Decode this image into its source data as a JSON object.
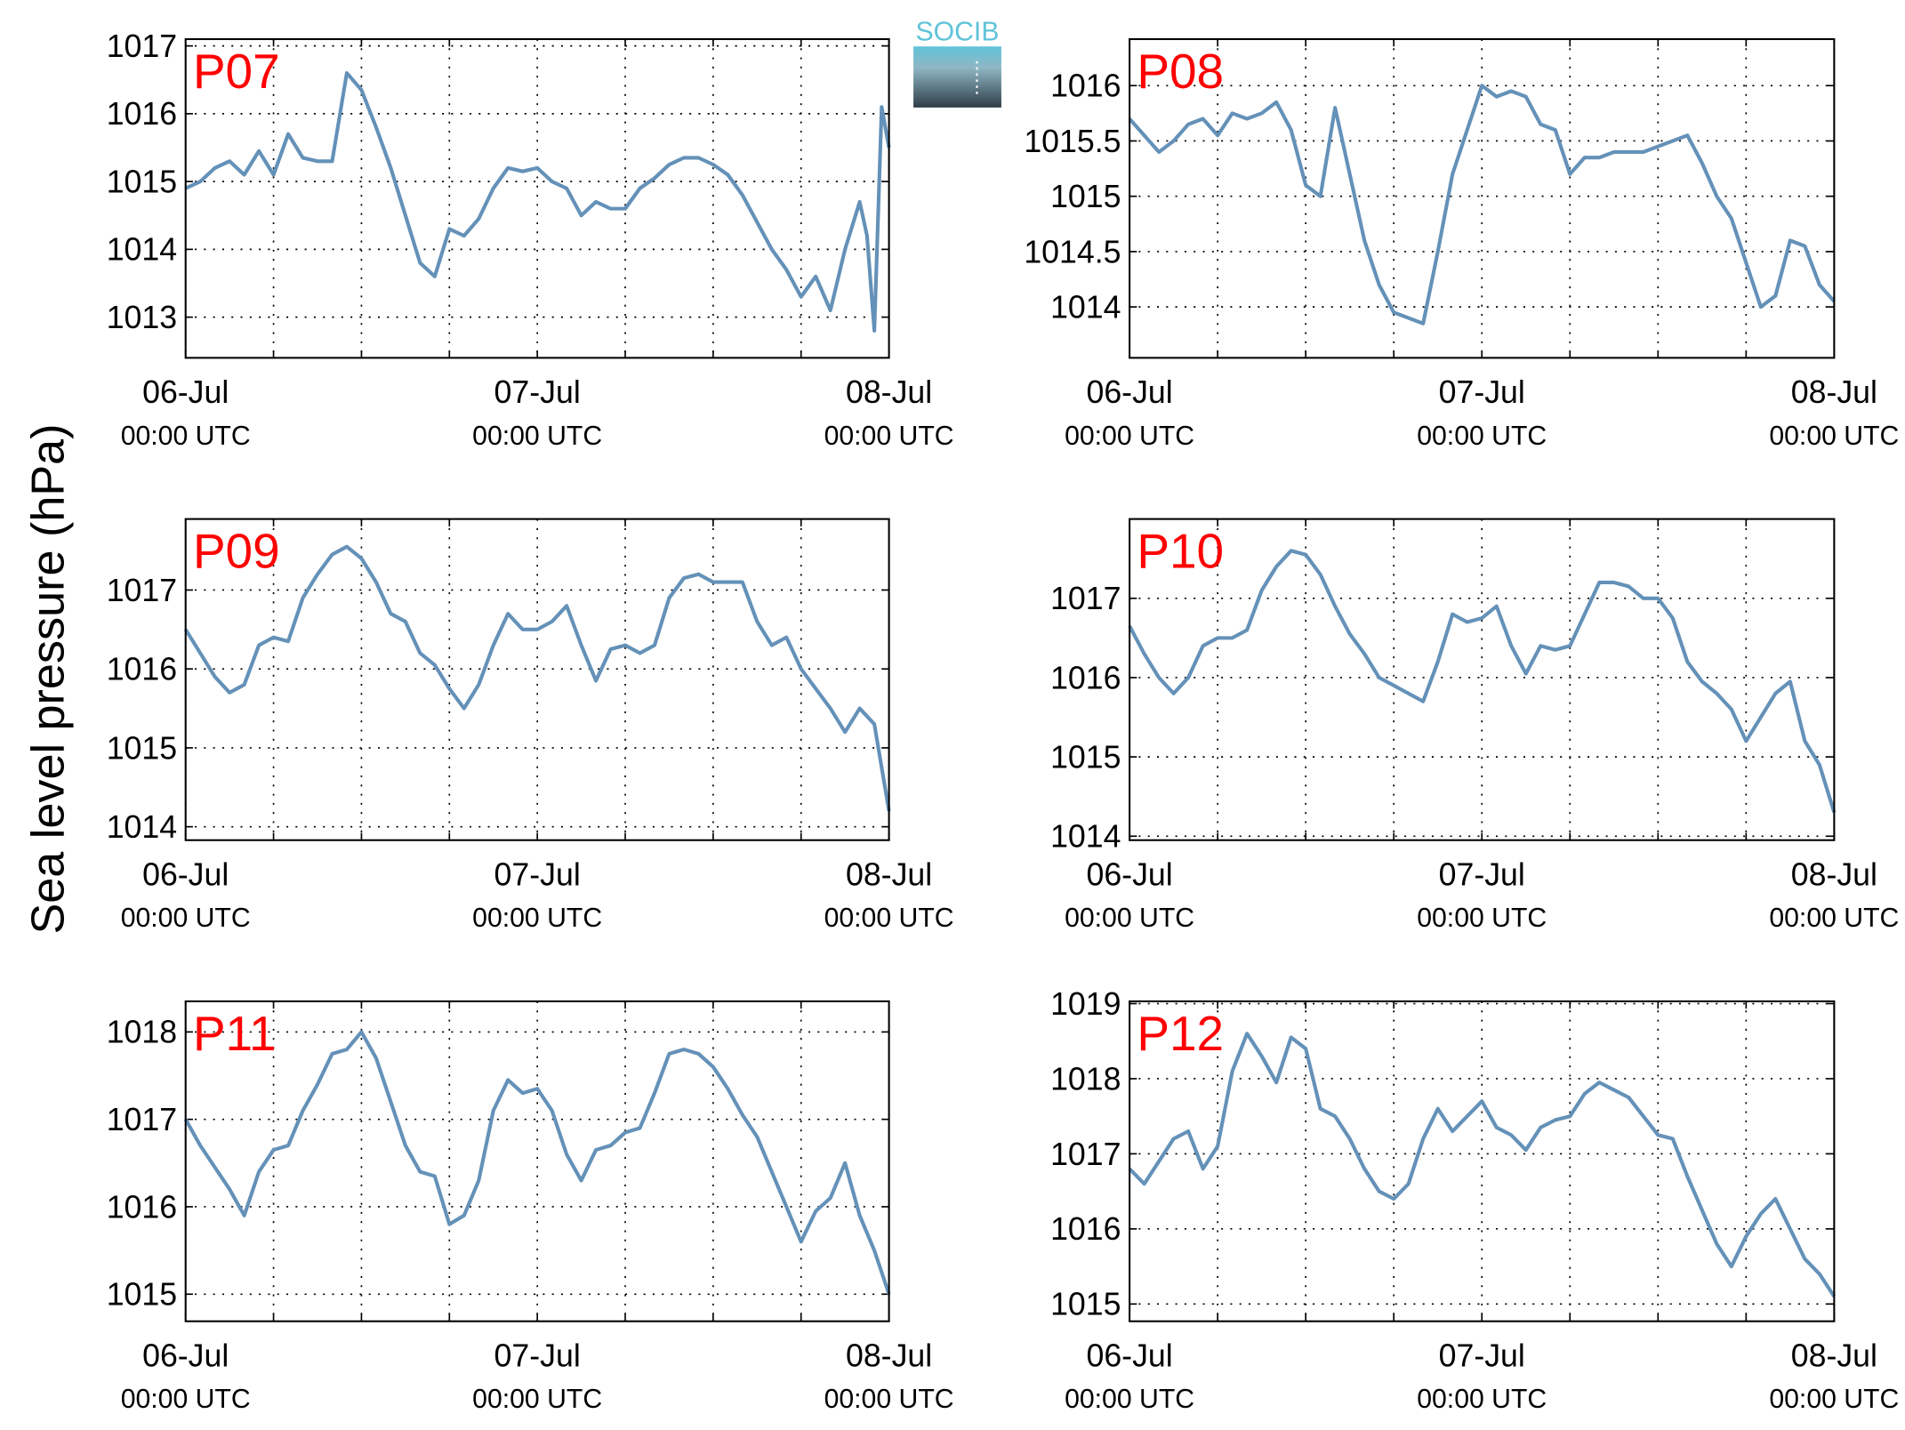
{
  "y_label": "Sea level pressure (hPa)",
  "logo": "SOCIB",
  "chart_data": [
    {
      "type": "line",
      "title": "P07",
      "x": [
        0,
        1,
        2,
        3,
        4,
        5,
        6,
        7,
        8,
        9,
        10,
        11,
        12,
        13,
        14,
        15,
        16,
        17,
        18,
        19,
        20,
        21,
        22,
        23,
        24,
        25,
        26,
        27,
        28,
        29,
        30,
        31,
        32,
        33,
        34,
        35,
        36,
        37,
        38,
        39,
        40,
        41,
        42,
        43,
        44,
        45,
        46,
        46.5,
        47,
        47.5,
        48
      ],
      "series": [
        {
          "color": "#6491b8",
          "values": [
            1014.9,
            1015.0,
            1015.2,
            1015.3,
            1015.1,
            1015.45,
            1015.1,
            1015.7,
            1015.35,
            1015.3,
            1015.3,
            1016.6,
            1016.35,
            1015.8,
            1015.2,
            1014.5,
            1013.8,
            1013.6,
            1014.3,
            1014.2,
            1014.45,
            1014.9,
            1015.2,
            1015.15,
            1015.2,
            1015.0,
            1014.9,
            1014.5,
            1014.7,
            1014.6,
            1014.6,
            1014.9,
            1015.05,
            1015.25,
            1015.35,
            1015.35,
            1015.25,
            1015.1,
            1014.8,
            1014.4,
            1014.0,
            1013.7,
            1013.3,
            1013.6,
            1013.1,
            1014.0,
            1014.7,
            1014.2,
            1012.8,
            1016.1,
            1015.5
          ]
        }
      ],
      "xlim": [
        0,
        48
      ],
      "xticks": [
        {
          "value": 0,
          "label": "06-Jul\n00:00 UTC"
        },
        {
          "value": 24,
          "label": "07-Jul\n00:00 UTC"
        },
        {
          "value": 48,
          "label": "08-Jul\n00:00 UTC"
        }
      ],
      "x_minor_ticks": [
        6,
        12,
        18,
        30,
        36,
        42
      ],
      "ylim": [
        1012.4,
        1017.1
      ],
      "yticks": [
        1013,
        1014,
        1015,
        1016,
        1017
      ],
      "grid": true
    },
    {
      "type": "line",
      "title": "P08",
      "x": [
        0,
        1,
        2,
        3,
        4,
        5,
        6,
        7,
        8,
        9,
        10,
        11,
        12,
        13,
        14,
        15,
        16,
        17,
        18,
        19,
        20,
        21,
        22,
        23,
        24,
        25,
        26,
        27,
        28,
        29,
        30,
        31,
        32,
        33,
        34,
        35,
        36,
        37,
        38,
        39,
        40,
        41,
        42,
        43,
        44,
        45,
        46,
        47,
        48
      ],
      "series": [
        {
          "color": "#6491b8",
          "values": [
            1015.7,
            1015.55,
            1015.4,
            1015.5,
            1015.65,
            1015.7,
            1015.55,
            1015.75,
            1015.7,
            1015.75,
            1015.85,
            1015.6,
            1015.1,
            1015.0,
            1015.8,
            1015.2,
            1014.6,
            1014.2,
            1013.95,
            1013.9,
            1013.85,
            1014.5,
            1015.2,
            1015.6,
            1016.0,
            1015.9,
            1015.95,
            1015.9,
            1015.65,
            1015.6,
            1015.2,
            1015.35,
            1015.35,
            1015.4,
            1015.4,
            1015.4,
            1015.45,
            1015.5,
            1015.55,
            1015.3,
            1015.0,
            1014.8,
            1014.4,
            1014.0,
            1014.1,
            1014.6,
            1014.55,
            1014.2,
            1014.05
          ]
        }
      ],
      "xlim": [
        0,
        48
      ],
      "xticks": [
        {
          "value": 0,
          "label": "06-Jul\n00:00 UTC"
        },
        {
          "value": 24,
          "label": "07-Jul\n00:00 UTC"
        },
        {
          "value": 48,
          "label": "08-Jul\n00:00 UTC"
        }
      ],
      "x_minor_ticks": [
        6,
        12,
        18,
        30,
        36,
        42
      ],
      "ylim": [
        1013.54,
        1016.42
      ],
      "yticks": [
        1014,
        1014.5,
        1015,
        1015.5,
        1016
      ],
      "grid": true
    },
    {
      "type": "line",
      "title": "P09",
      "x": [
        0,
        1,
        2,
        3,
        4,
        5,
        6,
        7,
        8,
        9,
        10,
        11,
        12,
        13,
        14,
        15,
        16,
        17,
        18,
        19,
        20,
        21,
        22,
        23,
        24,
        25,
        26,
        27,
        28,
        29,
        30,
        31,
        32,
        33,
        34,
        35,
        36,
        37,
        38,
        39,
        40,
        41,
        42,
        43,
        44,
        45,
        46,
        47,
        48
      ],
      "series": [
        {
          "color": "#6491b8",
          "values": [
            1016.5,
            1016.2,
            1015.9,
            1015.7,
            1015.8,
            1016.3,
            1016.4,
            1016.35,
            1016.9,
            1017.2,
            1017.45,
            1017.55,
            1017.4,
            1017.1,
            1016.7,
            1016.6,
            1016.2,
            1016.05,
            1015.75,
            1015.5,
            1015.8,
            1016.3,
            1016.7,
            1016.5,
            1016.5,
            1016.6,
            1016.8,
            1016.3,
            1015.85,
            1016.25,
            1016.3,
            1016.2,
            1016.3,
            1016.9,
            1017.15,
            1017.2,
            1017.1,
            1017.1,
            1017.1,
            1016.6,
            1016.3,
            1016.4,
            1016.0,
            1015.75,
            1015.5,
            1015.2,
            1015.5,
            1015.3,
            1014.2
          ]
        }
      ],
      "xlim": [
        0,
        48
      ],
      "xticks": [
        {
          "value": 0,
          "label": "06-Jul\n00:00 UTC"
        },
        {
          "value": 24,
          "label": "07-Jul\n00:00 UTC"
        },
        {
          "value": 48,
          "label": "08-Jul\n00:00 UTC"
        }
      ],
      "x_minor_ticks": [
        6,
        12,
        18,
        30,
        36,
        42
      ],
      "ylim": [
        1013.83,
        1017.9
      ],
      "yticks": [
        1014,
        1015,
        1016,
        1017
      ],
      "grid": true
    },
    {
      "type": "line",
      "title": "P10",
      "x": [
        0,
        1,
        2,
        3,
        4,
        5,
        6,
        7,
        8,
        9,
        10,
        11,
        12,
        13,
        14,
        15,
        16,
        17,
        18,
        19,
        20,
        21,
        22,
        23,
        24,
        25,
        26,
        27,
        28,
        29,
        30,
        31,
        32,
        33,
        34,
        35,
        36,
        37,
        38,
        39,
        40,
        41,
        42,
        43,
        44,
        45,
        46,
        47,
        48
      ],
      "series": [
        {
          "color": "#6491b8",
          "values": [
            1016.65,
            1016.3,
            1016.0,
            1015.8,
            1016.0,
            1016.4,
            1016.5,
            1016.5,
            1016.6,
            1017.1,
            1017.4,
            1017.6,
            1017.55,
            1017.3,
            1016.9,
            1016.55,
            1016.3,
            1016.0,
            1015.9,
            1015.8,
            1015.7,
            1016.2,
            1016.8,
            1016.7,
            1016.75,
            1016.9,
            1016.4,
            1016.05,
            1016.4,
            1016.35,
            1016.4,
            1016.8,
            1017.2,
            1017.2,
            1017.15,
            1017.0,
            1017.0,
            1016.75,
            1016.2,
            1015.95,
            1015.8,
            1015.6,
            1015.2,
            1015.5,
            1015.8,
            1015.95,
            1015.2,
            1014.9,
            1014.3
          ]
        }
      ],
      "xlim": [
        0,
        48
      ],
      "xticks": [
        {
          "value": 0,
          "label": "06-Jul\n00:00 UTC"
        },
        {
          "value": 24,
          "label": "07-Jul\n00:00 UTC"
        },
        {
          "value": 48,
          "label": "08-Jul\n00:00 UTC"
        }
      ],
      "x_minor_ticks": [
        6,
        12,
        18,
        30,
        36,
        42
      ],
      "ylim": [
        1013.95,
        1018.0
      ],
      "yticks": [
        1014,
        1015,
        1016,
        1017
      ],
      "grid": true
    },
    {
      "type": "line",
      "title": "P11",
      "x": [
        0,
        1,
        2,
        3,
        4,
        5,
        6,
        7,
        8,
        9,
        10,
        11,
        12,
        13,
        14,
        15,
        16,
        17,
        18,
        19,
        20,
        21,
        22,
        23,
        24,
        25,
        26,
        27,
        28,
        29,
        30,
        31,
        32,
        33,
        34,
        35,
        36,
        37,
        38,
        39,
        40,
        41,
        42,
        43,
        44,
        45,
        46,
        47,
        48
      ],
      "series": [
        {
          "color": "#6491b8",
          "values": [
            1017.0,
            1016.7,
            1016.45,
            1016.2,
            1015.9,
            1016.4,
            1016.65,
            1016.7,
            1017.1,
            1017.4,
            1017.75,
            1017.8,
            1018.0,
            1017.7,
            1017.2,
            1016.7,
            1016.4,
            1016.35,
            1015.8,
            1015.9,
            1016.3,
            1017.1,
            1017.45,
            1017.3,
            1017.35,
            1017.1,
            1016.6,
            1016.3,
            1016.65,
            1016.7,
            1016.85,
            1016.9,
            1017.3,
            1017.75,
            1017.8,
            1017.75,
            1017.6,
            1017.35,
            1017.05,
            1016.8,
            1016.4,
            1016.0,
            1015.6,
            1015.95,
            1016.1,
            1016.5,
            1015.9,
            1015.5,
            1015.0
          ]
        }
      ],
      "xlim": [
        0,
        48
      ],
      "xticks": [
        {
          "value": 0,
          "label": "06-Jul\n00:00 UTC"
        },
        {
          "value": 24,
          "label": "07-Jul\n00:00 UTC"
        },
        {
          "value": 48,
          "label": "08-Jul\n00:00 UTC"
        }
      ],
      "x_minor_ticks": [
        6,
        12,
        18,
        30,
        36,
        42
      ],
      "ylim": [
        1014.69,
        1018.35
      ],
      "yticks": [
        1015,
        1016,
        1017,
        1018
      ],
      "grid": true
    },
    {
      "type": "line",
      "title": "P12",
      "x": [
        0,
        1,
        2,
        3,
        4,
        5,
        6,
        7,
        8,
        9,
        10,
        11,
        12,
        13,
        14,
        15,
        16,
        17,
        18,
        19,
        20,
        21,
        22,
        23,
        24,
        25,
        26,
        27,
        28,
        29,
        30,
        31,
        32,
        33,
        34,
        35,
        36,
        37,
        38,
        39,
        40,
        41,
        42,
        43,
        44,
        45,
        46,
        47,
        48
      ],
      "series": [
        {
          "color": "#6491b8",
          "values": [
            1016.8,
            1016.6,
            1016.9,
            1017.2,
            1017.3,
            1016.8,
            1017.1,
            1018.1,
            1018.6,
            1018.3,
            1017.95,
            1018.55,
            1018.4,
            1017.6,
            1017.5,
            1017.2,
            1016.8,
            1016.5,
            1016.4,
            1016.6,
            1017.2,
            1017.6,
            1017.3,
            1017.5,
            1017.7,
            1017.35,
            1017.25,
            1017.05,
            1017.35,
            1017.45,
            1017.5,
            1017.8,
            1017.95,
            1017.85,
            1017.75,
            1017.5,
            1017.25,
            1017.2,
            1016.7,
            1016.25,
            1015.8,
            1015.5,
            1015.9,
            1016.2,
            1016.4,
            1016.0,
            1015.6,
            1015.4,
            1015.1
          ]
        }
      ],
      "xlim": [
        0,
        48
      ],
      "xticks": [
        {
          "value": 0,
          "label": "06-Jul\n00:00 UTC"
        },
        {
          "value": 24,
          "label": "07-Jul\n00:00 UTC"
        },
        {
          "value": 48,
          "label": "08-Jul\n00:00 UTC"
        }
      ],
      "x_minor_ticks": [
        6,
        12,
        18,
        30,
        36,
        42
      ],
      "ylim": [
        1014.77,
        1019.03
      ],
      "yticks": [
        1015,
        1016,
        1017,
        1018,
        1019
      ],
      "grid": true
    }
  ]
}
